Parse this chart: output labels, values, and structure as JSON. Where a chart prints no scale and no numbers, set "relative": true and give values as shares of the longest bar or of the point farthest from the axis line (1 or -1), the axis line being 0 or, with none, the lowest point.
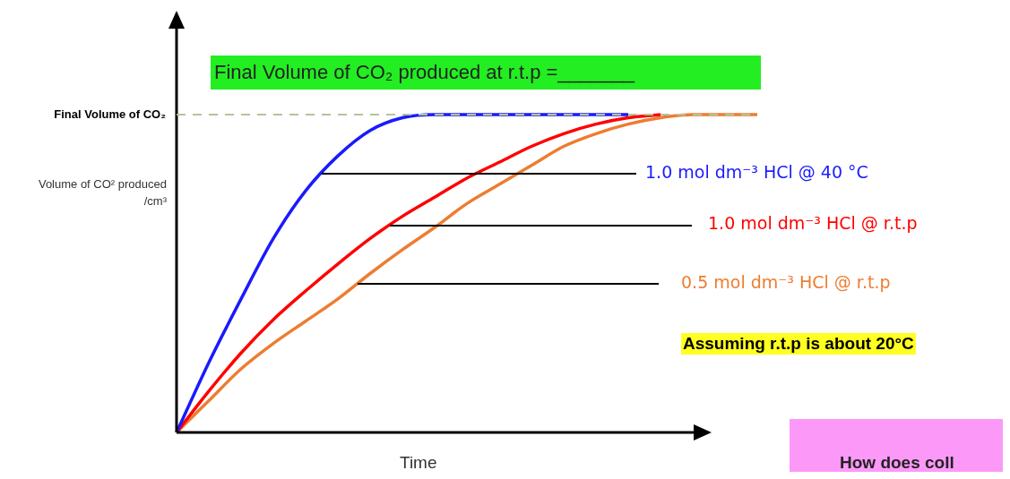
{
  "chart_data": {
    "type": "line",
    "relative": true,
    "title": "Final Volume of CO₂ produced at r.t.p =_______",
    "xlabel": "Time",
    "ylabel": "Volume of CO² produced /cm³",
    "categories": [
      null,
      null,
      null,
      null,
      null,
      null,
      null,
      null,
      null,
      null,
      null,
      null,
      null,
      null,
      null,
      null,
      null,
      null,
      null
    ],
    "series": [
      {
        "name": "1.0 mol dm⁻³ HCl @ 40 °C",
        "color": "#1a1aff",
        "values": [
          0,
          0.22,
          0.42,
          0.61,
          0.76,
          0.87,
          0.95,
          0.99,
          1,
          1,
          1,
          1,
          1,
          1,
          1,
          null,
          null,
          null,
          null
        ]
      },
      {
        "name": "1.0 mol dm⁻³ HCl @ r.t.p",
        "color": "#ff0000",
        "values": [
          0,
          0.13,
          0.25,
          0.355,
          0.445,
          0.53,
          0.61,
          0.68,
          0.74,
          0.8,
          0.85,
          0.9,
          0.94,
          0.97,
          0.99,
          1,
          null,
          null,
          null
        ]
      },
      {
        "name": "0.5 mol dm⁻³ HCl @ r.t.p",
        "color": "#ed7d31",
        "values": [
          0,
          0.1,
          0.2,
          0.28,
          0.35,
          0.42,
          0.5,
          0.575,
          0.645,
          0.72,
          0.78,
          0.84,
          0.9,
          0.94,
          0.97,
          0.99,
          1,
          1,
          1
        ]
      }
    ],
    "ref_lines": [
      {
        "axis": "y",
        "value": 1,
        "label": "Final Volume of CO₂",
        "color": "#b4c39a",
        "line_style": "dashed"
      }
    ],
    "annotations": [
      "Assuming r.t.p is about 20°C",
      "How does coll"
    ],
    "legend": false,
    "marker": "none",
    "line_style": "solid"
  }
}
